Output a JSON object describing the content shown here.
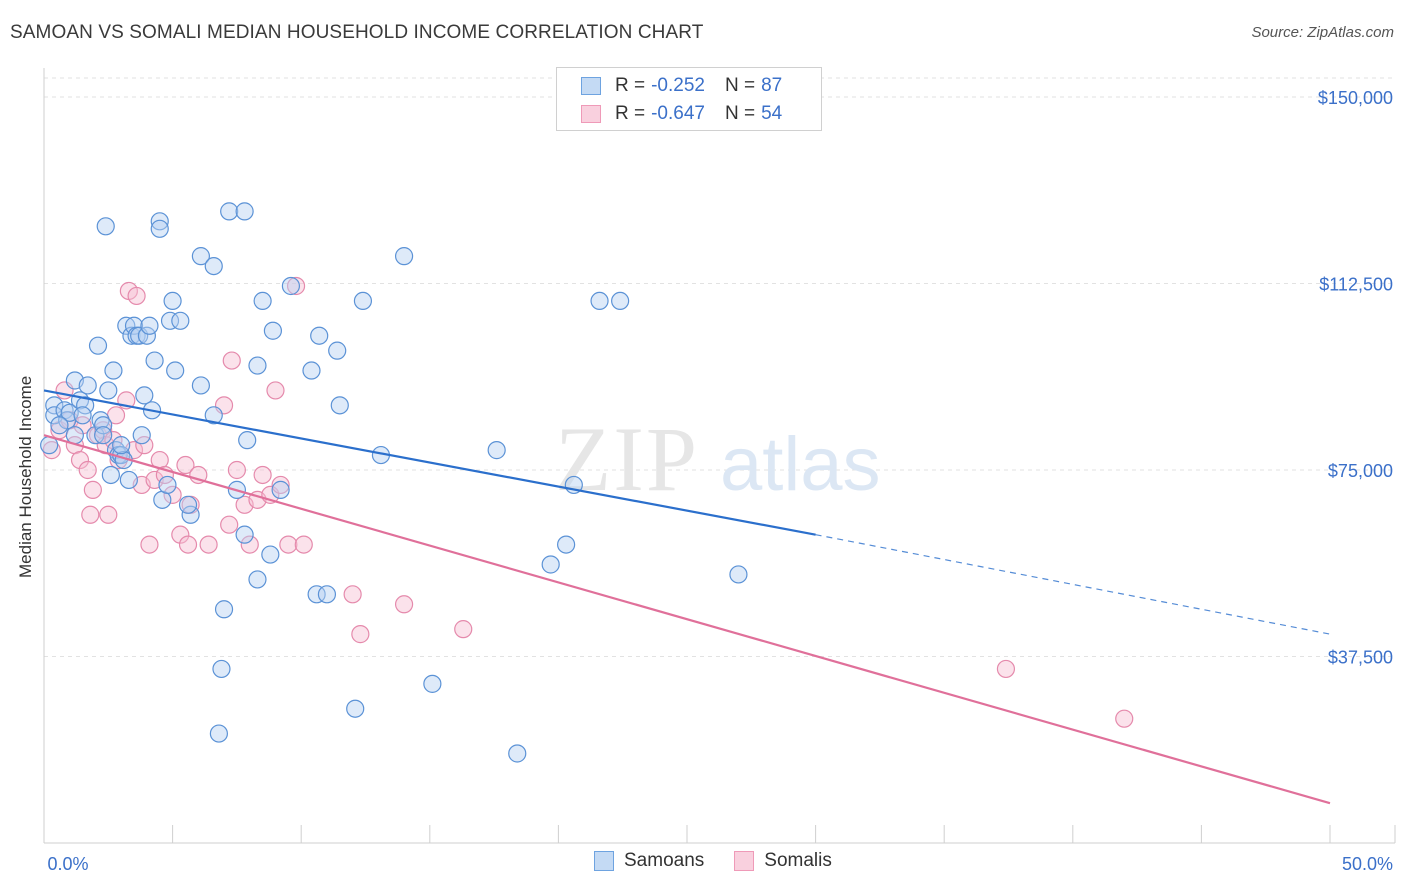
{
  "header": {
    "title": "SAMOAN VS SOMALI MEDIAN HOUSEHOLD INCOME CORRELATION CHART",
    "source": "Source: ZipAtlas.com"
  },
  "legend": {
    "r_label": "R =",
    "n_label": "N =",
    "samoans": {
      "r": "-0.252",
      "n": "87"
    },
    "somalis": {
      "r": "-0.647",
      "n": "54"
    }
  },
  "watermark": {
    "zip": "ZIP",
    "atlas": "atlas"
  },
  "chart_data": {
    "type": "scatter",
    "title": "SAMOAN VS SOMALI MEDIAN HOUSEHOLD INCOME CORRELATION CHART",
    "xlabel": "",
    "ylabel": "Median Household Income",
    "xlim": [
      0,
      50
    ],
    "ylim": [
      0,
      155000
    ],
    "x_tick_labels": [
      "0.0%",
      "50.0%"
    ],
    "y_ticks": [
      37500,
      75000,
      112500,
      150000
    ],
    "y_tick_labels": [
      "$37,500",
      "$75,000",
      "$112,500",
      "$150,000"
    ],
    "grid": true,
    "legend_placement": "top-center",
    "colors": {
      "samoans": "#6ea3e0",
      "somalis": "#ef9ab8",
      "samoans_line": "#2b6fcc",
      "somalis_line": "#e0709a",
      "axis_text": "#3b70c9"
    },
    "series": [
      {
        "name": "Samoans",
        "r": -0.252,
        "n": 87,
        "trend": {
          "x0": 0,
          "y0": 91000,
          "x1": 30,
          "y1": 62000,
          "dashed_to_x": 50,
          "dashed_to_y": 42000
        },
        "points": [
          [
            0.2,
            80000
          ],
          [
            0.4,
            88000
          ],
          [
            0.4,
            86000
          ],
          [
            0.8,
            87000
          ],
          [
            0.9,
            85000
          ],
          [
            1.0,
            86500
          ],
          [
            1.2,
            93000
          ],
          [
            1.2,
            82000
          ],
          [
            1.4,
            89000
          ],
          [
            1.6,
            88000
          ],
          [
            1.7,
            92000
          ],
          [
            2.0,
            82000
          ],
          [
            2.1,
            100000
          ],
          [
            2.2,
            85000
          ],
          [
            2.3,
            84000
          ],
          [
            2.3,
            82000
          ],
          [
            2.4,
            124000
          ],
          [
            2.6,
            74000
          ],
          [
            2.7,
            95000
          ],
          [
            2.8,
            79000
          ],
          [
            2.9,
            78000
          ],
          [
            3.0,
            78000
          ],
          [
            3.1,
            77000
          ],
          [
            3.2,
            104000
          ],
          [
            3.3,
            73000
          ],
          [
            3.4,
            102000
          ],
          [
            3.5,
            104000
          ],
          [
            3.6,
            102000
          ],
          [
            3.7,
            102000
          ],
          [
            3.8,
            82000
          ],
          [
            3.9,
            90000
          ],
          [
            4.0,
            102000
          ],
          [
            4.1,
            104000
          ],
          [
            4.2,
            87000
          ],
          [
            4.3,
            97000
          ],
          [
            4.5,
            125000
          ],
          [
            4.5,
            123500
          ],
          [
            4.6,
            69000
          ],
          [
            4.8,
            72000
          ],
          [
            4.9,
            105000
          ],
          [
            5.0,
            109000
          ],
          [
            5.1,
            95000
          ],
          [
            5.3,
            105000
          ],
          [
            5.7,
            66000
          ],
          [
            6.1,
            118000
          ],
          [
            6.1,
            92000
          ],
          [
            6.6,
            116000
          ],
          [
            6.6,
            86000
          ],
          [
            6.8,
            22000
          ],
          [
            6.9,
            35000
          ],
          [
            7.0,
            47000
          ],
          [
            7.2,
            127000
          ],
          [
            7.5,
            71000
          ],
          [
            7.8,
            127000
          ],
          [
            7.8,
            62000
          ],
          [
            7.9,
            81000
          ],
          [
            8.3,
            53000
          ],
          [
            8.3,
            96000
          ],
          [
            8.5,
            109000
          ],
          [
            8.8,
            58000
          ],
          [
            8.9,
            103000
          ],
          [
            9.2,
            71000
          ],
          [
            9.6,
            112000
          ],
          [
            10.4,
            95000
          ],
          [
            10.6,
            50000
          ],
          [
            10.7,
            102000
          ],
          [
            11.0,
            50000
          ],
          [
            11.4,
            99000
          ],
          [
            11.5,
            88000
          ],
          [
            12.1,
            27000
          ],
          [
            12.4,
            109000
          ],
          [
            13.1,
            78000
          ],
          [
            14.0,
            118000
          ],
          [
            15.1,
            32000
          ],
          [
            17.6,
            79000
          ],
          [
            18.4,
            18000
          ],
          [
            19.7,
            56000
          ],
          [
            20.3,
            60000
          ],
          [
            20.6,
            72000
          ],
          [
            21.6,
            109000
          ],
          [
            22.4,
            109000
          ],
          [
            27.0,
            54000
          ],
          [
            0.6,
            84000
          ],
          [
            1.5,
            86000
          ],
          [
            2.5,
            91000
          ],
          [
            3.0,
            80000
          ],
          [
            5.6,
            68000
          ]
        ]
      },
      {
        "name": "Somalis",
        "r": -0.647,
        "n": 54,
        "trend": {
          "x0": 0,
          "y0": 82000,
          "x1": 50,
          "y1": 8000
        },
        "points": [
          [
            0.3,
            79000
          ],
          [
            0.6,
            83000
          ],
          [
            0.8,
            91000
          ],
          [
            1.0,
            85000
          ],
          [
            1.2,
            80000
          ],
          [
            1.4,
            77000
          ],
          [
            1.5,
            84000
          ],
          [
            1.7,
            75000
          ],
          [
            1.8,
            66000
          ],
          [
            1.9,
            71000
          ],
          [
            2.1,
            82000
          ],
          [
            2.3,
            83000
          ],
          [
            2.4,
            80000
          ],
          [
            2.5,
            66000
          ],
          [
            2.7,
            81000
          ],
          [
            2.8,
            86000
          ],
          [
            2.9,
            77000
          ],
          [
            3.2,
            89000
          ],
          [
            3.3,
            111000
          ],
          [
            3.5,
            79000
          ],
          [
            3.6,
            110000
          ],
          [
            3.8,
            72000
          ],
          [
            3.9,
            80000
          ],
          [
            4.1,
            60000
          ],
          [
            4.3,
            73000
          ],
          [
            4.5,
            77000
          ],
          [
            4.7,
            74000
          ],
          [
            5.0,
            70000
          ],
          [
            5.3,
            62000
          ],
          [
            5.5,
            76000
          ],
          [
            5.6,
            60000
          ],
          [
            5.7,
            68000
          ],
          [
            6.0,
            74000
          ],
          [
            6.4,
            60000
          ],
          [
            7.0,
            88000
          ],
          [
            7.2,
            64000
          ],
          [
            7.3,
            97000
          ],
          [
            7.5,
            75000
          ],
          [
            7.8,
            68000
          ],
          [
            8.0,
            60000
          ],
          [
            8.3,
            69000
          ],
          [
            8.5,
            74000
          ],
          [
            8.8,
            70000
          ],
          [
            9.0,
            91000
          ],
          [
            9.2,
            72000
          ],
          [
            9.5,
            60000
          ],
          [
            9.8,
            112000
          ],
          [
            10.1,
            60000
          ],
          [
            12.0,
            50000
          ],
          [
            12.3,
            42000
          ],
          [
            14.0,
            48000
          ],
          [
            16.3,
            43000
          ],
          [
            37.4,
            35000
          ],
          [
            42.0,
            25000
          ]
        ]
      }
    ]
  }
}
